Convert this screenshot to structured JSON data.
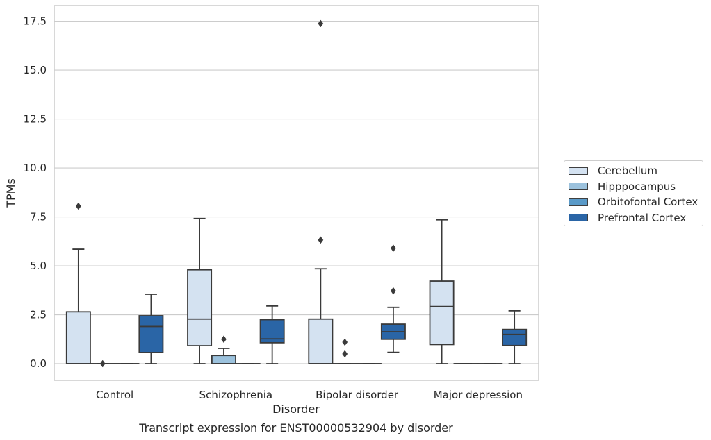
{
  "chart_data": {
    "type": "box",
    "title": "Transcript expression for ENST00000532904 by disorder",
    "xlabel": "Disorder",
    "ylabel": "TPMs",
    "categories": [
      "Control",
      "Schizophrenia",
      "Bipolar disorder",
      "Major depression"
    ],
    "ylim": [
      -0.85,
      18.3
    ],
    "yticks": [
      0.0,
      2.5,
      5.0,
      7.5,
      10.0,
      12.5,
      15.0,
      17.5
    ],
    "ytick_labels": [
      "0.0",
      "2.5",
      "5.0",
      "7.5",
      "10.0",
      "12.5",
      "15.0",
      "17.5"
    ],
    "grid": "horizontal",
    "legend_position": "right",
    "series": [
      {
        "name": "Cerebellum",
        "color": "#d4e2f1",
        "boxes": [
          {
            "q1": 0.0,
            "median": 0.0,
            "q3": 2.65,
            "whisker_low": 0.0,
            "whisker_high": 5.85,
            "outliers": [
              8.05
            ]
          },
          {
            "q1": 0.92,
            "median": 2.28,
            "q3": 4.8,
            "whisker_low": 0.0,
            "whisker_high": 7.42,
            "outliers": []
          },
          {
            "q1": 0.0,
            "median": 0.0,
            "q3": 2.28,
            "whisker_low": 0.0,
            "whisker_high": 4.85,
            "outliers": [
              6.32,
              17.38
            ]
          },
          {
            "q1": 0.98,
            "median": 2.92,
            "q3": 4.22,
            "whisker_low": 0.0,
            "whisker_high": 7.35,
            "outliers": []
          }
        ]
      },
      {
        "name": "Hipppocampus",
        "color": "#9cc2dd",
        "boxes": [
          {
            "q1": 0.0,
            "median": 0.0,
            "q3": 0.0,
            "whisker_low": 0.0,
            "whisker_high": 0.0,
            "outliers": [
              0.0
            ]
          },
          {
            "q1": 0.0,
            "median": 0.0,
            "q3": 0.42,
            "whisker_low": 0.0,
            "whisker_high": 0.78,
            "outliers": [
              1.25
            ]
          },
          {
            "q1": 0.0,
            "median": 0.0,
            "q3": 0.0,
            "whisker_low": 0.0,
            "whisker_high": 0.0,
            "outliers": [
              0.5,
              1.1
            ]
          },
          {
            "q1": 0.0,
            "median": 0.0,
            "q3": 0.0,
            "whisker_low": 0.0,
            "whisker_high": 0.0,
            "outliers": []
          }
        ]
      },
      {
        "name": "Orbitofontal Cortex",
        "color": "#5a9ac8",
        "boxes": [
          {
            "q1": 0.0,
            "median": 0.0,
            "q3": 0.0,
            "whisker_low": 0.0,
            "whisker_high": 0.0,
            "outliers": []
          },
          {
            "q1": 0.0,
            "median": 0.0,
            "q3": 0.0,
            "whisker_low": 0.0,
            "whisker_high": 0.0,
            "outliers": []
          },
          {
            "q1": 0.0,
            "median": 0.0,
            "q3": 0.0,
            "whisker_low": 0.0,
            "whisker_high": 0.0,
            "outliers": []
          },
          {
            "q1": 0.0,
            "median": 0.0,
            "q3": 0.0,
            "whisker_low": 0.0,
            "whisker_high": 0.0,
            "outliers": []
          }
        ]
      },
      {
        "name": "Prefrontal Cortex",
        "color": "#2a65a6",
        "boxes": [
          {
            "q1": 0.57,
            "median": 1.9,
            "q3": 2.45,
            "whisker_low": 0.0,
            "whisker_high": 3.55,
            "outliers": []
          },
          {
            "q1": 1.07,
            "median": 1.27,
            "q3": 2.25,
            "whisker_low": 0.0,
            "whisker_high": 2.95,
            "outliers": []
          },
          {
            "q1": 1.25,
            "median": 1.63,
            "q3": 2.02,
            "whisker_low": 0.58,
            "whisker_high": 2.88,
            "outliers": [
              3.72,
              5.9
            ]
          },
          {
            "q1": 0.93,
            "median": 1.5,
            "q3": 1.75,
            "whisker_low": 0.0,
            "whisker_high": 2.7,
            "outliers": []
          }
        ]
      }
    ]
  }
}
